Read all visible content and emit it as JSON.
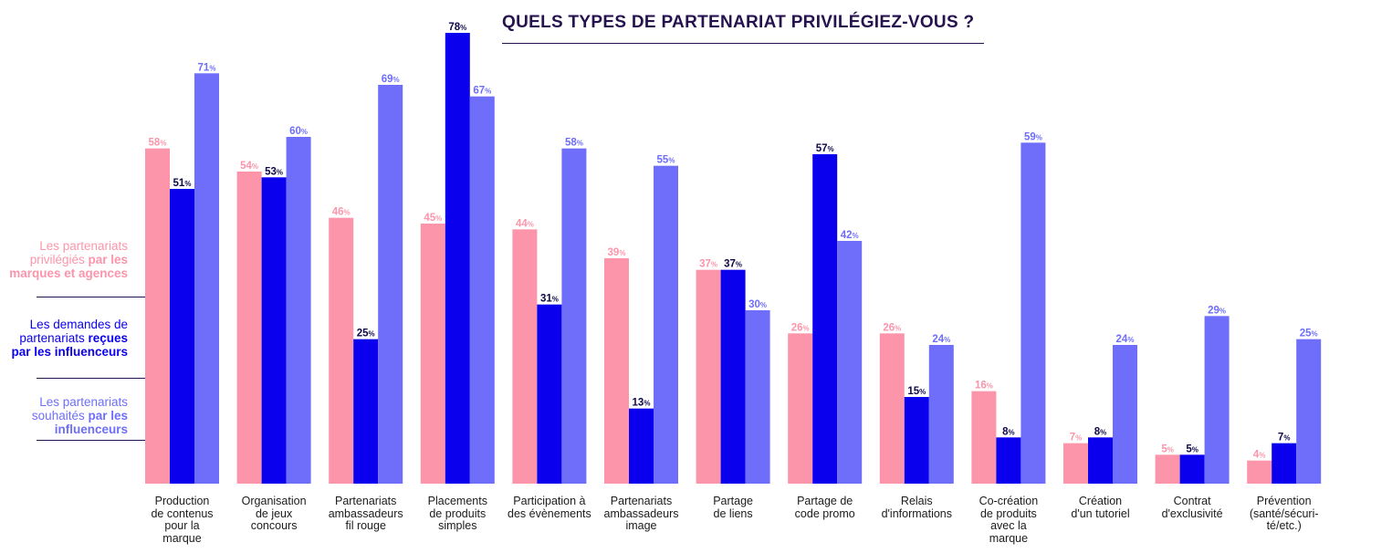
{
  "title": "QUELS TYPES DE PARTENARIAT PRIVILÉGIEZ-VOUS ?",
  "colors": {
    "marques": "#fc95aa",
    "recues": "#0b00ee",
    "souhaites": "#6e6efb",
    "title": "#25124f"
  },
  "legend": [
    {
      "light": "Les partenariats privilégiés",
      "bold": "par les marques et agences",
      "color": "#fc95aa"
    },
    {
      "light": "Les demandes de partenariats",
      "bold": "reçues par les influenceurs",
      "color": "#0b00ee"
    },
    {
      "light": "Les partenariats souhaités",
      "bold": "par les influenceurs",
      "color": "#6e6efb"
    }
  ],
  "chart_data": {
    "type": "bar",
    "title": "QUELS TYPES DE PARTENARIAT PRIVILÉGIEZ-VOUS ?",
    "categories": [
      [
        "Production",
        "de contenus",
        "pour la",
        "marque"
      ],
      [
        "Organisation",
        "de jeux",
        "concours"
      ],
      [
        "Partenariats",
        "ambassadeurs",
        "fil rouge"
      ],
      [
        "Placements",
        "de produits",
        "simples"
      ],
      [
        "Participation à",
        "des évènements"
      ],
      [
        "Partenariats",
        "ambassadeurs",
        "image"
      ],
      [
        "Partage",
        "de liens"
      ],
      [
        "Partage de",
        "code promo"
      ],
      [
        "Relais",
        "d'informations"
      ],
      [
        "Co-création",
        "de produits",
        "avec la",
        "marque"
      ],
      [
        "Création",
        "d'un tutoriel"
      ],
      [
        "Contrat",
        "d'exclusivité"
      ],
      [
        "Prévention",
        "(santé/sécuri-",
        "té/etc.)"
      ]
    ],
    "series": [
      {
        "name": "Les partenariats privilégiés par les marques et agences",
        "values": [
          58,
          54,
          46,
          45,
          44,
          39,
          37,
          26,
          26,
          16,
          7,
          5,
          4
        ]
      },
      {
        "name": "Les demandes de partenariats reçues par les influenceurs",
        "values": [
          51,
          53,
          25,
          78,
          31,
          13,
          37,
          57,
          15,
          8,
          8,
          5,
          7
        ]
      },
      {
        "name": "Les partenariats souhaités par les influenceurs",
        "values": [
          71,
          60,
          69,
          67,
          58,
          55,
          30,
          42,
          24,
          59,
          24,
          29,
          25
        ]
      }
    ],
    "value_suffix": "%",
    "ylim": [
      0,
      78
    ],
    "grid": false,
    "legend_position": "left"
  }
}
